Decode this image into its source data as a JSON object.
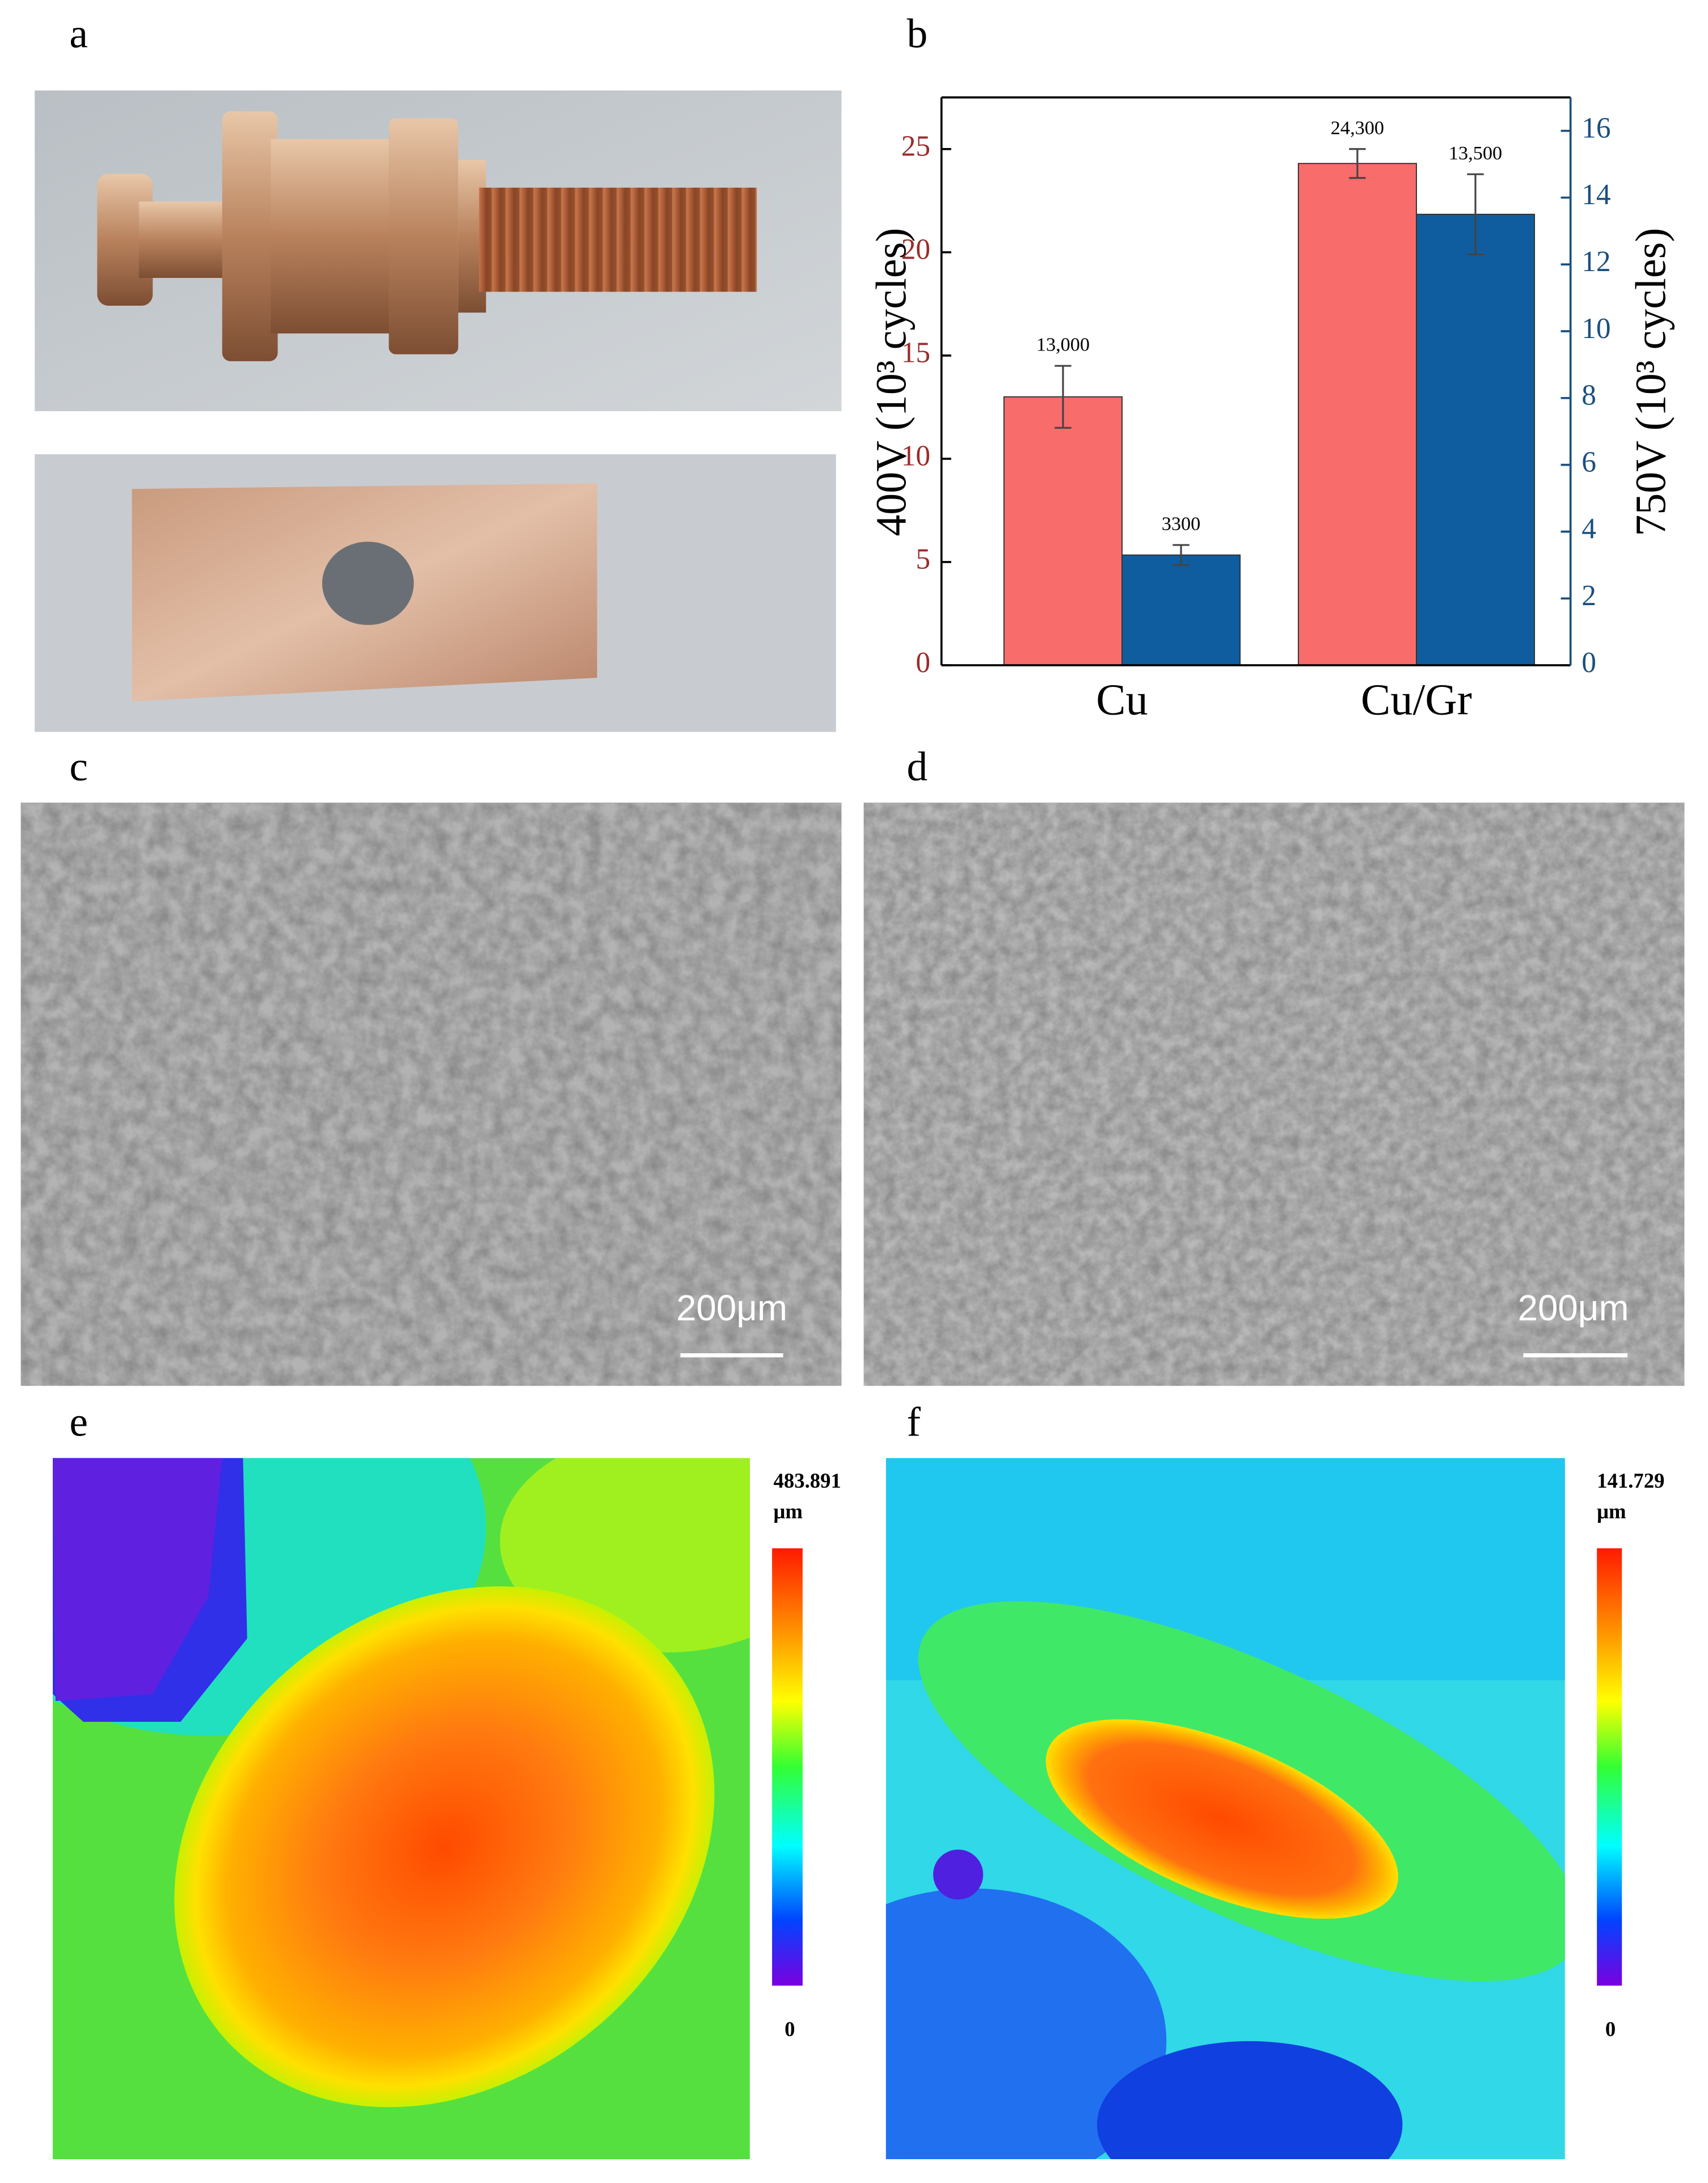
{
  "chart_data": {
    "type": "bar",
    "categories": [
      "Cu",
      "Cu/Gr"
    ],
    "y_label": "400V (10³ cycles)",
    "y2_label": "750V (10³ cycles)",
    "ylim": [
      0,
      27.5
    ],
    "yticks": [
      0,
      5,
      10,
      15,
      20,
      25
    ],
    "y2lim": [
      0,
      17
    ],
    "y2ticks": [
      0,
      2,
      4,
      6,
      8,
      10,
      12,
      14,
      16
    ],
    "series": [
      {
        "color": "#f86c6b",
        "values": [
          13,
          24.3
        ],
        "errors": [
          1.5,
          0.7
        ],
        "value_labels": [
          "13,000",
          "24,300"
        ]
      },
      {
        "color": "#0f5d9e",
        "axis": "y2",
        "values": [
          3.3,
          13.5
        ],
        "errors": [
          0.3,
          1.2
        ],
        "value_labels": [
          "3300",
          "13,500"
        ]
      }
    ]
  },
  "panels": {
    "a": {
      "label": "a"
    },
    "b": {
      "label": "b"
    },
    "c": {
      "label": "c",
      "scale_bar": "200μm"
    },
    "d": {
      "label": "d",
      "scale_bar": "200μm"
    },
    "e": {
      "label": "e",
      "scale_max": "483.891",
      "scale_unit": "μm",
      "scale_min": "0"
    },
    "f": {
      "label": "f",
      "scale_max": "141.729",
      "scale_unit": "μm",
      "scale_min": "0"
    }
  }
}
